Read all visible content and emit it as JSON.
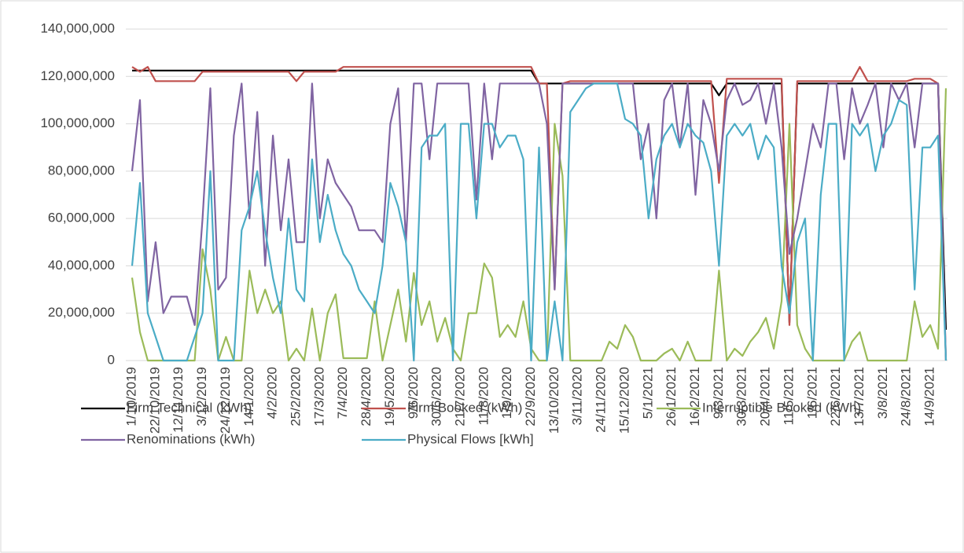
{
  "chart_data": {
    "type": "line",
    "categories": [
      "1/10/2019",
      null,
      null,
      "22/10/2019",
      null,
      null,
      "12/11/2019",
      null,
      null,
      "3/12/2019",
      null,
      null,
      "24/12/2019",
      null,
      null,
      "14/1/2020",
      null,
      null,
      "4/2/2020",
      null,
      null,
      "25/2/2020",
      null,
      null,
      "17/3/2020",
      null,
      null,
      "7/4/2020",
      null,
      null,
      "28/4/2020",
      null,
      null,
      "19/5/2020",
      null,
      null,
      "9/6/2020",
      null,
      null,
      "30/6/2020",
      null,
      null,
      "21/7/2020",
      null,
      null,
      "11/8/2020",
      null,
      null,
      "1/9/2020",
      null,
      null,
      "22/9/2020",
      null,
      null,
      "13/10/2020",
      null,
      null,
      "3/11/2020",
      null,
      null,
      "24/11/2020",
      null,
      null,
      "15/12/2020",
      null,
      null,
      "5/1/2021",
      null,
      null,
      "26/1/2021",
      null,
      null,
      "16/2/2021",
      null,
      null,
      "9/3/2021",
      null,
      null,
      "30/3/2021",
      null,
      null,
      "20/4/2021",
      null,
      null,
      "11/5/2021",
      null,
      null,
      "1/6/2021",
      null,
      null,
      "22/6/2021",
      null,
      null,
      "13/7/2021",
      null,
      null,
      "3/8/2021",
      null,
      null,
      "24/8/2021",
      null,
      null,
      "14/9/2021",
      null,
      null
    ],
    "series": [
      {
        "name": "Firm Technical (kWh)",
        "color": "#000000",
        "values": [
          122500000.0,
          122500000.0,
          122500000.0,
          122500000.0,
          122500000.0,
          122500000.0,
          122500000.0,
          122500000.0,
          122500000.0,
          122500000.0,
          122500000.0,
          122500000.0,
          122500000.0,
          122500000.0,
          122500000.0,
          122500000.0,
          122500000.0,
          122500000.0,
          122500000.0,
          122500000.0,
          122500000.0,
          122500000.0,
          122500000.0,
          122500000.0,
          122500000.0,
          122500000.0,
          122500000.0,
          122500000.0,
          122500000.0,
          122500000.0,
          122500000.0,
          122500000.0,
          122500000.0,
          122500000.0,
          122500000.0,
          122500000.0,
          122500000.0,
          122500000.0,
          122500000.0,
          122500000.0,
          122500000.0,
          122500000.0,
          122500000.0,
          122500000.0,
          122500000.0,
          122500000.0,
          122500000.0,
          122500000.0,
          122500000.0,
          122500000.0,
          122500000.0,
          122500000.0,
          117000000.0,
          117000000.0,
          117000000.0,
          117000000.0,
          117000000.0,
          117000000.0,
          117000000.0,
          117000000.0,
          117000000.0,
          117000000.0,
          117000000.0,
          117000000.0,
          117000000.0,
          117000000.0,
          117000000.0,
          117000000.0,
          117000000.0,
          117000000.0,
          117000000.0,
          117000000.0,
          117000000.0,
          117000000.0,
          117000000.0,
          112000000.0,
          117000000.0,
          117000000.0,
          117000000.0,
          117000000.0,
          117000000.0,
          117000000.0,
          117000000.0,
          117000000.0,
          16000000.0,
          117000000.0,
          117000000.0,
          117000000.0,
          117000000.0,
          117000000.0,
          117000000.0,
          117000000.0,
          117000000.0,
          117000000.0,
          117000000.0,
          117000000.0,
          117000000.0,
          117000000.0,
          117000000.0,
          117000000.0,
          117000000.0,
          117000000.0,
          117000000.0,
          117000000.0,
          13000000.0
        ]
      },
      {
        "name": "Firm Booked (kWh)",
        "color": "#c0504d",
        "values": [
          124000000.0,
          122000000.0,
          124000000.0,
          118000000.0,
          118000000.0,
          118000000.0,
          118000000.0,
          118000000.0,
          118000000.0,
          122000000.0,
          122000000.0,
          122000000.0,
          122000000.0,
          122000000.0,
          122000000.0,
          122000000.0,
          122000000.0,
          122000000.0,
          122000000.0,
          122000000.0,
          122000000.0,
          118000000.0,
          122000000.0,
          122000000.0,
          122000000.0,
          122000000.0,
          122000000.0,
          124000000.0,
          124000000.0,
          124000000.0,
          124000000.0,
          124000000.0,
          124000000.0,
          124000000.0,
          124000000.0,
          124000000.0,
          124000000.0,
          124000000.0,
          124000000.0,
          124000000.0,
          124000000.0,
          124000000.0,
          124000000.0,
          124000000.0,
          124000000.0,
          124000000.0,
          124000000.0,
          124000000.0,
          124000000.0,
          124000000.0,
          124000000.0,
          124000000.0,
          117000000.0,
          117000000.0,
          30000000.0,
          117000000.0,
          118000000.0,
          118000000.0,
          118000000.0,
          118000000.0,
          118000000.0,
          118000000.0,
          118000000.0,
          118000000.0,
          118000000.0,
          118000000.0,
          118000000.0,
          118000000.0,
          118000000.0,
          118000000.0,
          118000000.0,
          118000000.0,
          118000000.0,
          118000000.0,
          118000000.0,
          75000000.0,
          119000000.0,
          119000000.0,
          119000000.0,
          119000000.0,
          119000000.0,
          119000000.0,
          119000000.0,
          119000000.0,
          15000000.0,
          118000000.0,
          118000000.0,
          118000000.0,
          118000000.0,
          118000000.0,
          118000000.0,
          118000000.0,
          118000000.0,
          124000000.0,
          118000000.0,
          118000000.0,
          118000000.0,
          118000000.0,
          118000000.0,
          118000000.0,
          119000000.0,
          119000000.0,
          119000000.0,
          117000000.0,
          0
        ]
      },
      {
        "name": "Interruptible Booked (kWh)",
        "color": "#9bbb59",
        "values": [
          35000000.0,
          12000000.0,
          0,
          0,
          0,
          0,
          0,
          0,
          0,
          47000000.0,
          30000000.0,
          0,
          10000000.0,
          0,
          0,
          38000000.0,
          20000000.0,
          30000000.0,
          20000000.0,
          25000000.0,
          0,
          5000000.0,
          0,
          22000000.0,
          0,
          20000000.0,
          28000000.0,
          1000000.0,
          1000000.0,
          1000000.0,
          1000000.0,
          25000000.0,
          0,
          15000000.0,
          30000000.0,
          8000000.0,
          37000000.0,
          15000000.0,
          25000000.0,
          8000000.0,
          18000000.0,
          5000000.0,
          0,
          20000000.0,
          20000000.0,
          41000000.0,
          35000000.0,
          10000000.0,
          15000000.0,
          10000000.0,
          25000000.0,
          5000000.0,
          0,
          0,
          100000000.0,
          78000000.0,
          0,
          0,
          0,
          0,
          0,
          8000000.0,
          5000000.0,
          15000000.0,
          10000000.0,
          0,
          0,
          0,
          3000000.0,
          5000000.0,
          0,
          8000000.0,
          0,
          0,
          0,
          38000000.0,
          0,
          5000000.0,
          2000000.0,
          8000000.0,
          12000000.0,
          18000000.0,
          5000000.0,
          25000000.0,
          100000000.0,
          15000000.0,
          5000000.0,
          0,
          0,
          0,
          0,
          0,
          8000000.0,
          12000000.0,
          0,
          0,
          0,
          0,
          0,
          0,
          25000000.0,
          10000000.0,
          15000000.0,
          5000000.0,
          115000000.0
        ]
      },
      {
        "name": "Renominations (kWh)",
        "color": "#8064a2",
        "values": [
          80000000.0,
          110000000.0,
          25000000.0,
          50000000.0,
          20000000.0,
          27000000.0,
          27000000.0,
          27000000.0,
          15000000.0,
          60000000.0,
          115000000.0,
          30000000.0,
          35000000.0,
          95000000.0,
          117000000.0,
          60000000.0,
          105000000.0,
          40000000.0,
          95000000.0,
          55000000.0,
          85000000.0,
          50000000.0,
          50000000.0,
          117000000.0,
          60000000.0,
          85000000.0,
          75000000.0,
          70000000.0,
          65000000.0,
          55000000.0,
          55000000.0,
          55000000.0,
          50000000.0,
          100000000.0,
          115000000.0,
          50000000.0,
          117000000.0,
          117000000.0,
          85000000.0,
          117000000.0,
          117000000.0,
          117000000.0,
          117000000.0,
          117000000.0,
          68000000.0,
          117000000.0,
          85000000.0,
          117000000.0,
          117000000.0,
          117000000.0,
          117000000.0,
          117000000.0,
          117000000.0,
          100000000.0,
          30000000.0,
          117000000.0,
          117000000.0,
          117000000.0,
          117000000.0,
          117000000.0,
          117000000.0,
          117000000.0,
          117000000.0,
          117000000.0,
          117000000.0,
          85000000.0,
          100000000.0,
          60000000.0,
          110000000.0,
          117000000.0,
          90000000.0,
          117000000.0,
          70000000.0,
          110000000.0,
          100000000.0,
          80000000.0,
          110000000.0,
          117000000.0,
          108000000.0,
          110000000.0,
          117000000.0,
          100000000.0,
          117000000.0,
          90000000.0,
          45000000.0,
          60000000.0,
          80000000.0,
          100000000.0,
          90000000.0,
          117000000.0,
          117000000.0,
          85000000.0,
          115000000.0,
          100000000.0,
          108000000.0,
          117000000.0,
          90000000.0,
          117000000.0,
          110000000.0,
          117000000.0,
          90000000.0,
          117000000.0,
          117000000.0,
          117000000.0,
          0
        ]
      },
      {
        "name": "Physical Flows [kWh]",
        "color": "#4bacc6",
        "values": [
          40000000.0,
          75000000.0,
          20000000.0,
          10000000.0,
          0,
          0,
          0,
          0,
          10000000.0,
          20000000.0,
          80000000.0,
          0,
          0,
          0,
          55000000.0,
          65000000.0,
          80000000.0,
          55000000.0,
          35000000.0,
          20000000.0,
          60000000.0,
          30000000.0,
          25000000.0,
          85000000.0,
          50000000.0,
          70000000.0,
          55000000.0,
          45000000.0,
          40000000.0,
          30000000.0,
          25000000.0,
          20000000.0,
          40000000.0,
          75000000.0,
          65000000.0,
          50000000.0,
          0,
          90000000.0,
          95000000.0,
          95000000.0,
          100000000.0,
          0,
          100000000.0,
          100000000.0,
          60000000.0,
          100000000.0,
          100000000.0,
          90000000.0,
          95000000.0,
          95000000.0,
          85000000.0,
          0,
          90000000.0,
          0,
          25000000.0,
          0,
          105000000.0,
          110000000.0,
          115000000.0,
          117000000.0,
          117000000.0,
          117000000.0,
          117000000.0,
          102000000.0,
          100000000.0,
          95000000.0,
          60000000.0,
          85000000.0,
          95000000.0,
          100000000.0,
          90000000.0,
          100000000.0,
          95000000.0,
          92000000.0,
          80000000.0,
          40000000.0,
          95000000.0,
          100000000.0,
          95000000.0,
          100000000.0,
          85000000.0,
          95000000.0,
          90000000.0,
          40000000.0,
          20000000.0,
          50000000.0,
          60000000.0,
          0,
          70000000.0,
          100000000.0,
          100000000.0,
          0,
          100000000.0,
          95000000.0,
          100000000.0,
          80000000.0,
          95000000.0,
          100000000.0,
          110000000.0,
          108000000.0,
          30000000.0,
          90000000.0,
          90000000.0,
          95000000.0,
          0
        ]
      }
    ],
    "ylim": [
      0,
      140000000
    ],
    "yticks": [
      0,
      {
        "value": 20000000,
        "label": "20,000,000"
      },
      {
        "value": 40000000,
        "label": "40,000,000"
      },
      {
        "value": 60000000,
        "label": "60,000,000"
      },
      {
        "value": 80000000,
        "label": "80,000,000"
      },
      {
        "value": 100000000,
        "label": "100,000,000"
      },
      {
        "value": 120000000,
        "label": "120,000,000"
      },
      {
        "value": 140000000,
        "label": "140,000,000"
      }
    ],
    "grid": true
  }
}
